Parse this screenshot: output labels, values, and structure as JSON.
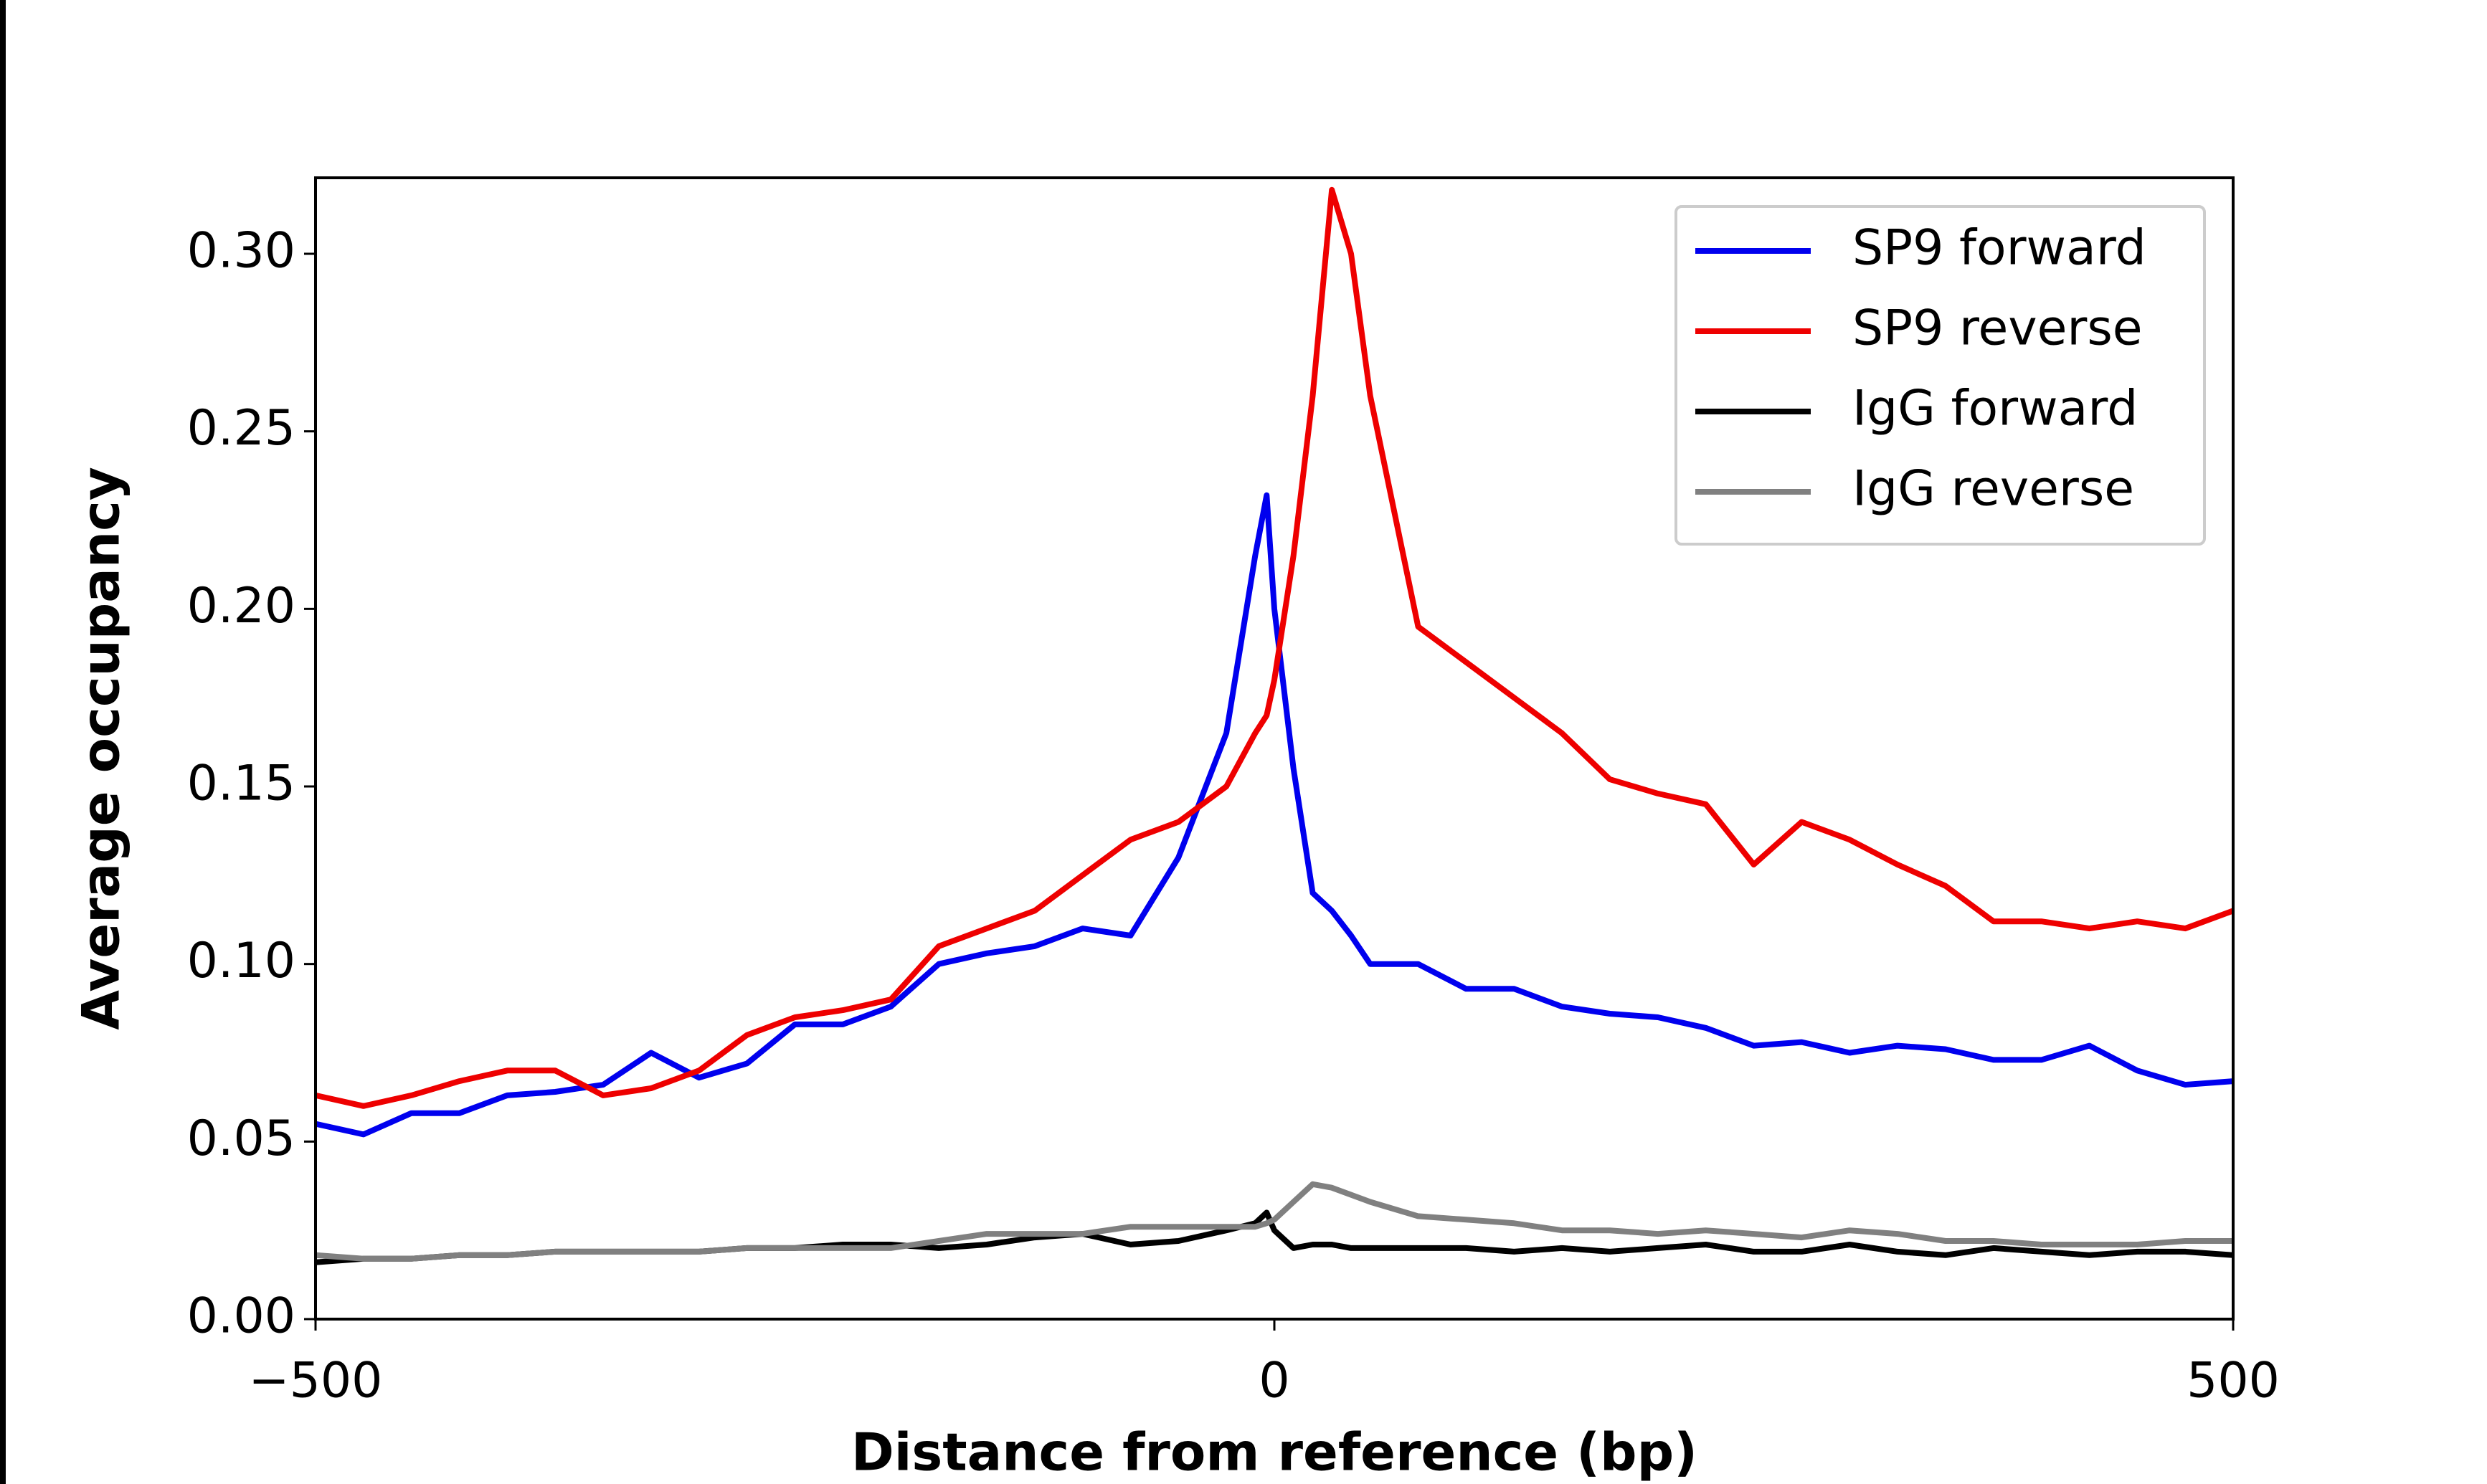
{
  "chart_data": {
    "type": "line",
    "x_label": "Distance from reference (bp)",
    "y_label": "Average occupancy",
    "x": [
      -500,
      -475,
      -450,
      -425,
      -400,
      -375,
      -350,
      -325,
      -300,
      -275,
      -250,
      -225,
      -200,
      -175,
      -150,
      -125,
      -100,
      -75,
      -50,
      -25,
      -10,
      -4,
      0,
      10,
      20,
      30,
      40,
      50,
      75,
      100,
      125,
      150,
      175,
      200,
      225,
      250,
      275,
      300,
      325,
      350,
      375,
      400,
      425,
      450,
      475,
      500
    ],
    "series": [
      {
        "name": "SP9 forward",
        "color": "#0000ee",
        "values": [
          0.055,
          0.052,
          0.058,
          0.058,
          0.063,
          0.064,
          0.066,
          0.075,
          0.068,
          0.072,
          0.083,
          0.083,
          0.088,
          0.1,
          0.103,
          0.105,
          0.11,
          0.108,
          0.13,
          0.165,
          0.215,
          0.232,
          0.2,
          0.155,
          0.12,
          0.115,
          0.108,
          0.1,
          0.1,
          0.093,
          0.093,
          0.088,
          0.086,
          0.085,
          0.082,
          0.077,
          0.078,
          0.075,
          0.077,
          0.076,
          0.073,
          0.073,
          0.077,
          0.07,
          0.066,
          0.067
        ]
      },
      {
        "name": "SP9 reverse",
        "color": "#ee0000",
        "values": [
          0.063,
          0.06,
          0.063,
          0.067,
          0.07,
          0.07,
          0.063,
          0.065,
          0.07,
          0.08,
          0.085,
          0.087,
          0.09,
          0.105,
          0.11,
          0.115,
          0.125,
          0.135,
          0.14,
          0.15,
          0.165,
          0.17,
          0.18,
          0.215,
          0.26,
          0.318,
          0.3,
          0.26,
          0.195,
          0.185,
          0.175,
          0.165,
          0.152,
          0.148,
          0.145,
          0.128,
          0.14,
          0.135,
          0.128,
          0.122,
          0.112,
          0.112,
          0.11,
          0.112,
          0.11,
          0.115
        ]
      },
      {
        "name": "IgG forward",
        "color": "#000000",
        "values": [
          0.016,
          0.017,
          0.017,
          0.018,
          0.018,
          0.019,
          0.019,
          0.019,
          0.019,
          0.02,
          0.02,
          0.021,
          0.021,
          0.02,
          0.021,
          0.023,
          0.024,
          0.021,
          0.022,
          0.025,
          0.027,
          0.03,
          0.025,
          0.02,
          0.021,
          0.021,
          0.02,
          0.02,
          0.02,
          0.02,
          0.019,
          0.02,
          0.019,
          0.02,
          0.021,
          0.019,
          0.019,
          0.021,
          0.019,
          0.018,
          0.02,
          0.019,
          0.018,
          0.019,
          0.019,
          0.018
        ]
      },
      {
        "name": "IgG reverse",
        "color": "#808080",
        "values": [
          0.018,
          0.017,
          0.017,
          0.018,
          0.018,
          0.019,
          0.019,
          0.019,
          0.019,
          0.02,
          0.02,
          0.02,
          0.02,
          0.022,
          0.024,
          0.024,
          0.024,
          0.026,
          0.026,
          0.026,
          0.026,
          0.027,
          0.028,
          0.033,
          0.038,
          0.037,
          0.035,
          0.033,
          0.029,
          0.028,
          0.027,
          0.025,
          0.025,
          0.024,
          0.025,
          0.024,
          0.023,
          0.025,
          0.024,
          0.022,
          0.022,
          0.021,
          0.021,
          0.021,
          0.022,
          0.022
        ]
      }
    ],
    "xlim": [
      -500,
      500
    ],
    "xticks": [
      {
        "value": -500,
        "label": "−500"
      },
      0,
      500
    ],
    "ylim": [
      0,
      0.3214
    ],
    "yticks": [
      {
        "value": 0,
        "label": "0.00"
      },
      0.05,
      {
        "value": 0.1,
        "label": "0.10"
      },
      0.15,
      {
        "value": 0.2,
        "label": "0.20"
      },
      0.25,
      {
        "value": 0.3,
        "label": "0.30"
      }
    ],
    "legend": "upper right"
  }
}
